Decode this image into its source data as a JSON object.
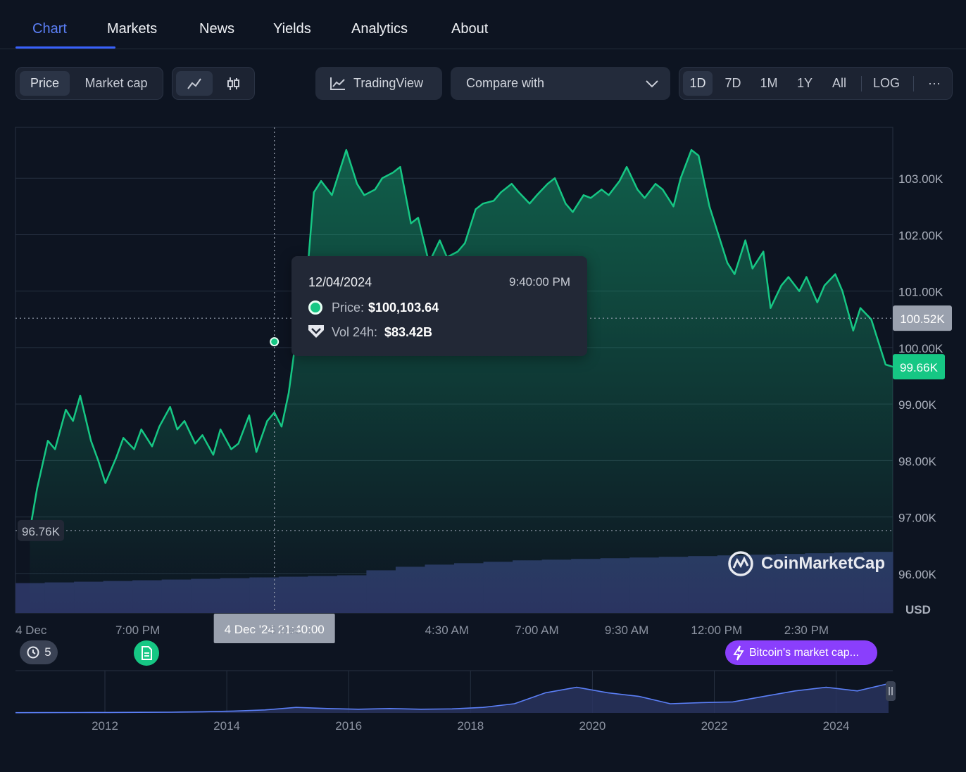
{
  "tabs": [
    {
      "label": "Chart",
      "active": true
    },
    {
      "label": "Markets"
    },
    {
      "label": "News"
    },
    {
      "label": "Yields"
    },
    {
      "label": "Analytics"
    },
    {
      "label": "About"
    }
  ],
  "toolbar": {
    "price_label": "Price",
    "market_cap_label": "Market cap",
    "line_icon": "line-chart-icon",
    "candle_icon": "candlestick-icon",
    "tradingview_label": "TradingView",
    "compare_label": "Compare with",
    "ranges": [
      "1D",
      "7D",
      "1M",
      "1Y",
      "All"
    ],
    "active_range": "1D",
    "log_label": "LOG",
    "more_label": "···"
  },
  "chart_data": {
    "type": "line",
    "currency": "USD",
    "ylim": [
      95300,
      103900
    ],
    "y_ticks": [
      {
        "v": 103000,
        "label": "103.00K"
      },
      {
        "v": 102000,
        "label": "102.00K"
      },
      {
        "v": 101000,
        "label": "101.00K"
      },
      {
        "v": 100000,
        "label": "100.00K"
      },
      {
        "v": 99000,
        "label": "99.00K"
      },
      {
        "v": 98000,
        "label": "98.00K"
      },
      {
        "v": 97000,
        "label": "97.00K"
      },
      {
        "v": 96000,
        "label": "96.00K"
      }
    ],
    "x_labels": [
      {
        "t": 0,
        "label": "4 Dec"
      },
      {
        "t": 3.4,
        "label": "7:00 PM"
      },
      {
        "t": 7.5,
        "label": "5 Dec"
      },
      {
        "t": 12.0,
        "label": "4:30 AM"
      },
      {
        "t": 14.5,
        "label": "7:00 AM"
      },
      {
        "t": 17.0,
        "label": "9:30 AM"
      },
      {
        "t": 19.5,
        "label": "12:00 PM"
      },
      {
        "t": 22.0,
        "label": "2:30 PM"
      }
    ],
    "x_unit": "hours since 4 Dec 00:00",
    "xlim": [
      0,
      24.4
    ],
    "series": [
      {
        "color": "#16c784",
        "x": [
          0.4,
          0.6,
          0.9,
          1.1,
          1.4,
          1.6,
          1.8,
          2.1,
          2.3,
          2.5,
          2.8,
          3.0,
          3.3,
          3.5,
          3.8,
          4.0,
          4.3,
          4.5,
          4.7,
          5.0,
          5.2,
          5.5,
          5.7,
          6.0,
          6.2,
          6.5,
          6.7,
          7.0,
          7.2,
          7.4,
          7.6,
          7.8,
          8.0,
          8.3,
          8.5,
          8.8,
          9.0,
          9.2,
          9.5,
          9.7,
          10.0,
          10.2,
          10.5,
          10.7,
          11.0,
          11.2,
          11.5,
          11.8,
          12.0,
          12.3,
          12.5,
          12.8,
          13.0,
          13.3,
          13.5,
          13.8,
          14.0,
          14.3,
          14.5,
          14.8,
          15.0,
          15.3,
          15.5,
          15.8,
          16.0,
          16.3,
          16.5,
          16.8,
          17.0,
          17.3,
          17.5,
          17.8,
          18.0,
          18.3,
          18.5,
          18.8,
          19.0,
          19.3,
          19.5,
          19.8,
          20.0,
          20.3,
          20.5,
          20.8,
          21.0,
          21.3,
          21.5,
          21.8,
          22.0,
          22.3,
          22.5,
          22.8,
          23.0,
          23.3,
          23.5,
          23.8,
          24.0,
          24.2,
          24.4
        ],
        "values": [
          96760,
          97500,
          98350,
          98200,
          98900,
          98700,
          99150,
          98350,
          98000,
          97600,
          98050,
          98400,
          98200,
          98550,
          98250,
          98600,
          98950,
          98550,
          98700,
          98300,
          98450,
          98100,
          98550,
          98200,
          98300,
          98800,
          98150,
          98700,
          98850,
          98600,
          99200,
          100150,
          100400,
          102750,
          102950,
          102700,
          103100,
          103500,
          102900,
          102700,
          102800,
          103000,
          103100,
          103200,
          102200,
          102300,
          101500,
          101900,
          101600,
          101700,
          101850,
          102450,
          102550,
          102600,
          102750,
          102900,
          102750,
          102550,
          102700,
          102900,
          103000,
          102550,
          102400,
          102700,
          102650,
          102800,
          102700,
          102950,
          103200,
          102800,
          102650,
          102900,
          102800,
          102500,
          103000,
          103500,
          103400,
          102500,
          102100,
          101500,
          101300,
          101900,
          101400,
          101700,
          100700,
          101100,
          101250,
          101000,
          101250,
          100800,
          101100,
          101300,
          101000,
          100300,
          100700,
          100500,
          100100,
          99700,
          99660
        ]
      }
    ],
    "start_label": "96.76K",
    "start_value": 96760,
    "last_label": "99.66K",
    "last_value": 99660,
    "crosshair": {
      "t": 7.2,
      "price": 100103.64,
      "y_value": 100520,
      "y_label": "100.52K",
      "x_label": "4 Dec '24 21:40:00"
    },
    "volume_relative": [
      0.42,
      0.43,
      0.44,
      0.45,
      0.46,
      0.47,
      0.48,
      0.49,
      0.5,
      0.51,
      0.52,
      0.53,
      0.6,
      0.65,
      0.68,
      0.7,
      0.72,
      0.74,
      0.75,
      0.76,
      0.77,
      0.78,
      0.79,
      0.8,
      0.81,
      0.82,
      0.83,
      0.84,
      0.85,
      0.86
    ],
    "tooltip": {
      "date": "12/04/2024",
      "time": "9:40:00 PM",
      "price_label": "Price:",
      "price_value": "$100,103.64",
      "vol_label": "Vol 24h:",
      "vol_value": "$83.42B"
    },
    "watermark": "CoinMarketCap",
    "navigator": {
      "years": [
        "2012",
        "2014",
        "2016",
        "2018",
        "2020",
        "2022",
        "2024"
      ],
      "values": [
        0.005,
        0.008,
        0.01,
        0.012,
        0.015,
        0.02,
        0.03,
        0.05,
        0.08,
        0.15,
        0.12,
        0.1,
        0.12,
        0.1,
        0.11,
        0.15,
        0.25,
        0.55,
        0.7,
        0.55,
        0.45,
        0.25,
        0.28,
        0.3,
        0.45,
        0.6,
        0.7,
        0.6,
        0.8
      ]
    }
  },
  "events": {
    "history_count": "5",
    "news_icon": "document-icon",
    "bitcoin_pill": "Bitcoin's market cap..."
  }
}
